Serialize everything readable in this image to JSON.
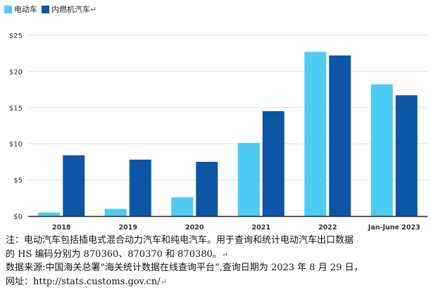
{
  "chart_data": {
    "type": "bar",
    "categories": [
      "2018",
      "2019",
      "2020",
      "2021",
      "2022",
      "Jan-June 2023"
    ],
    "series": [
      {
        "name": "电动车",
        "color": "#4ecbf2",
        "values": [
          0.5,
          1.0,
          2.6,
          10.1,
          22.7,
          18.2
        ]
      },
      {
        "name": "内燃机汽车",
        "color": "#0d56a6",
        "values": [
          8.4,
          7.8,
          7.5,
          14.5,
          22.2,
          16.7
        ]
      }
    ],
    "yticks": [
      0,
      5,
      10,
      15,
      20,
      25
    ],
    "ytick_labels": [
      "$0",
      "$5",
      "$10",
      "$15",
      "$20",
      "$25"
    ],
    "ylim": [
      0,
      25
    ],
    "grid": true,
    "legend_position": "top-left"
  },
  "legend_return_mark": "↵",
  "note": {
    "line1": "注：电动汽车包括插电式混合动力汽车和纯电汽车。用于查询和统计电动汽车出口数据",
    "line2": "的 HS 编码分别为 870360、870370 和 870380。",
    "line3": "数据来源:中国海关总署“海关统计数据在线查询平台”,查询日期为 2023 年 8 月 29 日，",
    "line4": "网址：http://stats.customs.gov.cn/",
    "return_mark": "↵"
  }
}
